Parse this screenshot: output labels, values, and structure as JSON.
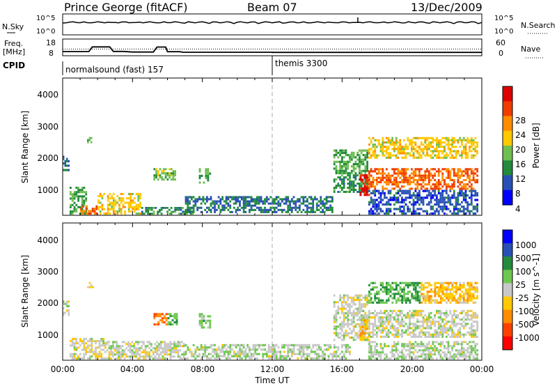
{
  "header": {
    "station": "Prince George (fitACF)",
    "beam": "Beam 07",
    "date": "13/Dec/2009"
  },
  "noise_panel": {
    "left_label": "N.Sky",
    "right_label": "N.Search",
    "ticks_left": [
      "10^5",
      "10^0"
    ],
    "ticks_right": [
      "10^5",
      "10^0"
    ]
  },
  "freq_panel": {
    "left_label_1": "Freq.",
    "left_label_2": "[MHz]",
    "ticks_left": [
      "18",
      "8"
    ],
    "ticks_right": [
      "60",
      "0"
    ],
    "right_label": "Nave",
    "freq_steps": [
      [
        0,
        10.5
      ],
      [
        1.5,
        10.5
      ],
      [
        1.7,
        13.3
      ],
      [
        2.7,
        13.3
      ],
      [
        2.9,
        10.6
      ],
      [
        3.5,
        10.6
      ],
      [
        4.0,
        10.2
      ],
      [
        5.2,
        10.2
      ],
      [
        5.4,
        13.2
      ],
      [
        5.9,
        13.2
      ],
      [
        6.0,
        10.4
      ],
      [
        6.7,
        10.4
      ],
      [
        6.9,
        10.1
      ],
      [
        9.0,
        10.1
      ],
      [
        12.0,
        10.1
      ],
      [
        12.0,
        10.0
      ],
      [
        24,
        10.0
      ]
    ],
    "nave_level": 12.0
  },
  "cpid": {
    "label": "CPID",
    "segments": [
      {
        "start": 0,
        "end": 12,
        "text": "normalsound (fast) 157"
      },
      {
        "start": 12,
        "end": 24,
        "text": "themis 3300"
      }
    ]
  },
  "x_axis": {
    "label": "Time UT",
    "ticks": [
      "00:00",
      "04:00",
      "08:00",
      "12:00",
      "16:00",
      "20:00",
      "00:00"
    ],
    "range_hours": [
      0,
      24
    ]
  },
  "chart_data": [
    {
      "type": "heatmap",
      "title": "",
      "ylabel": "Slant Range [km]",
      "ylim": [
        180,
        4600
      ],
      "y_ticks": [
        "4000",
        "3000",
        "2000",
        "1000"
      ],
      "colorbar": {
        "label": "Power [dB]",
        "ticks": [
          "28",
          "24",
          "20",
          "16",
          "12",
          "8",
          "4"
        ],
        "range": [
          0,
          32
        ],
        "colors": [
          "#0000ff",
          "#2850b4",
          "#228b3c",
          "#6ebe50",
          "#ffc800",
          "#ff8c00",
          "#f03c00",
          "#dc0000"
        ]
      },
      "echo_regions": [
        {
          "t": [
            0.0,
            0.4
          ],
          "r": [
            1600,
            2100
          ],
          "value": 8
        },
        {
          "t": [
            0.4,
            1.4
          ],
          "r": [
            200,
            1100
          ],
          "value": 12
        },
        {
          "t": [
            1.0,
            2.0
          ],
          "r": [
            200,
            500
          ],
          "value": 24
        },
        {
          "t": [
            1.4,
            1.8
          ],
          "r": [
            2500,
            2700
          ],
          "value": 14
        },
        {
          "t": [
            2.0,
            4.5
          ],
          "r": [
            200,
            900
          ],
          "value": 18
        },
        {
          "t": [
            4.5,
            7.5
          ],
          "r": [
            200,
            450
          ],
          "value": 10
        },
        {
          "t": [
            5.2,
            6.5
          ],
          "r": [
            1300,
            1700
          ],
          "value": 14
        },
        {
          "t": [
            7.8,
            8.5
          ],
          "r": [
            1200,
            1700
          ],
          "value": 12
        },
        {
          "t": [
            7.0,
            15.5
          ],
          "r": [
            250,
            800
          ],
          "value": 8
        },
        {
          "t": [
            15.5,
            17.5
          ],
          "r": [
            1500,
            2300
          ],
          "value": 12
        },
        {
          "t": [
            15.5,
            17.5
          ],
          "r": [
            900,
            1500
          ],
          "value": 10
        },
        {
          "t": [
            17.0,
            17.6
          ],
          "r": [
            800,
            1500
          ],
          "value": 28
        },
        {
          "t": [
            17.5,
            23.8
          ],
          "r": [
            1000,
            1700
          ],
          "value": 24
        },
        {
          "t": [
            17.5,
            23.8
          ],
          "r": [
            2000,
            2700
          ],
          "value": 18
        },
        {
          "t": [
            17.5,
            23.8
          ],
          "r": [
            200,
            1000
          ],
          "value": 6
        }
      ]
    },
    {
      "type": "heatmap",
      "title": "",
      "ylabel": "Slant Range [km]",
      "ylim": [
        180,
        4600
      ],
      "y_ticks": [
        "4000",
        "3000",
        "2000",
        "1000"
      ],
      "colorbar": {
        "label": "Velocity [m s^-1]",
        "ticks": [
          "1000",
          "500",
          "100",
          "25",
          "-25",
          "-100",
          "-500",
          "-1000"
        ],
        "range": [
          -1200,
          1200
        ],
        "colors": [
          "#ff0000",
          "#ff4000",
          "#ff8c00",
          "#ffc800",
          "#c8c8c8",
          "#6ec850",
          "#228b3c",
          "#2850b4",
          "#0000ff"
        ]
      },
      "echo_regions": [
        {
          "t": [
            0.0,
            0.4
          ],
          "r": [
            1600,
            2100
          ],
          "value": 0
        },
        {
          "t": [
            0.4,
            2.5
          ],
          "r": [
            200,
            900
          ],
          "value": -50
        },
        {
          "t": [
            1.4,
            1.8
          ],
          "r": [
            2500,
            2700
          ],
          "value": -200
        },
        {
          "t": [
            2.5,
            7.0
          ],
          "r": [
            200,
            800
          ],
          "value": 0
        },
        {
          "t": [
            5.2,
            6.0
          ],
          "r": [
            1300,
            1700
          ],
          "value": -600
        },
        {
          "t": [
            6.0,
            6.6
          ],
          "r": [
            1300,
            1700
          ],
          "value": 300
        },
        {
          "t": [
            7.8,
            8.5
          ],
          "r": [
            1200,
            1700
          ],
          "value": 200
        },
        {
          "t": [
            7.0,
            16.5
          ],
          "r": [
            200,
            700
          ],
          "value": 60
        },
        {
          "t": [
            15.5,
            17.5
          ],
          "r": [
            800,
            2300
          ],
          "value": 0
        },
        {
          "t": [
            17.0,
            17.6
          ],
          "r": [
            800,
            1500
          ],
          "value": -300
        },
        {
          "t": [
            17.5,
            23.8
          ],
          "r": [
            900,
            1800
          ],
          "value": 0
        },
        {
          "t": [
            17.5,
            20.5
          ],
          "r": [
            2000,
            2700
          ],
          "value": 400
        },
        {
          "t": [
            20.5,
            23.8
          ],
          "r": [
            2000,
            2700
          ],
          "value": -300
        },
        {
          "t": [
            17.5,
            23.8
          ],
          "r": [
            200,
            800
          ],
          "value": 60
        }
      ]
    }
  ]
}
